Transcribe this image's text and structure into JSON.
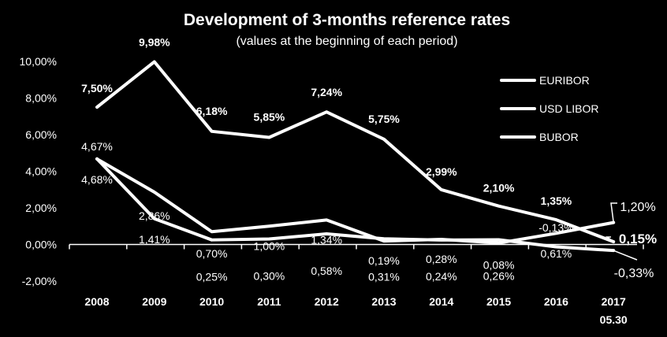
{
  "chart_data": {
    "type": "line",
    "title": "Development of 3-months reference rates",
    "subtitle": "(values at the beginning of each period)",
    "categories": [
      "2008",
      "2009",
      "2010",
      "2011",
      "2012",
      "2013",
      "2014",
      "2015",
      "2016",
      "2017"
    ],
    "category_sublabels": [
      "",
      "",
      "",
      "",
      "",
      "",
      "",
      "",
      "",
      "05.30"
    ],
    "ylim": [
      -2,
      10
    ],
    "yticks": [
      "-2,00%",
      "0,00%",
      "2,00%",
      "4,00%",
      "6,00%",
      "8,00%",
      "10,00%"
    ],
    "ytick_values": [
      -2,
      0,
      2,
      4,
      6,
      8,
      10
    ],
    "legend_position": "right",
    "series": [
      {
        "name": "EURIBOR",
        "values": [
          4.68,
          1.41,
          0.25,
          0.3,
          0.58,
          0.31,
          0.24,
          0.26,
          -0.13,
          -0.33
        ],
        "labels": [
          "4,68%",
          "1,41%",
          "0,25%",
          "0,30%",
          "0,58%",
          "0,31%",
          "0,24%",
          "0,26%",
          "-0,13%",
          "-0,33%"
        ],
        "bold": false
      },
      {
        "name": "USD LIBOR",
        "values": [
          4.67,
          2.86,
          0.7,
          1.0,
          1.34,
          0.19,
          0.28,
          0.08,
          0.61,
          1.2
        ],
        "labels": [
          "4,67%",
          "2,86%",
          "0,70%",
          "1,00%",
          "1,34%",
          "0,19%",
          "0,28%",
          "0,08%",
          "0,61%",
          "1,20%"
        ],
        "bold": false
      },
      {
        "name": "BUBOR",
        "values": [
          7.5,
          9.98,
          6.18,
          5.85,
          7.24,
          5.75,
          2.99,
          2.1,
          1.35,
          0.15
        ],
        "labels": [
          "7,50%",
          "9,98%",
          "6,18%",
          "5,85%",
          "7,24%",
          "5,75%",
          "2,99%",
          "2,10%",
          "1,35%",
          "0,15%"
        ],
        "bold": true
      }
    ]
  }
}
